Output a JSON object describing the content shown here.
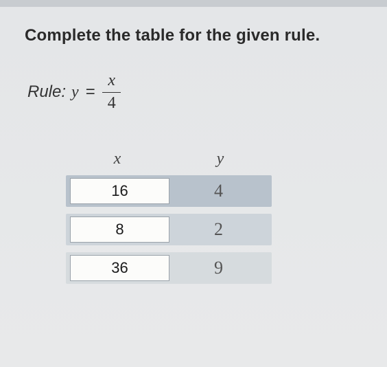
{
  "heading": "Complete the table for the given rule.",
  "rule": {
    "label": "Rule:",
    "lhs_var": "y",
    "equals": "=",
    "numerator": "x",
    "denominator": "4"
  },
  "table": {
    "header_x": "x",
    "header_y": "y",
    "rows": [
      {
        "x": "16",
        "y": "4",
        "shade": "shade-dark"
      },
      {
        "x": "8",
        "y": "2",
        "shade": "shade-mid"
      },
      {
        "x": "36",
        "y": "9",
        "shade": "shade-light"
      }
    ]
  },
  "colors": {
    "background": "#e8e9ea",
    "text": "#2a2a2a",
    "row_shade_dark": "#b8c2cc",
    "row_shade_mid": "#cdd4da",
    "row_shade_light": "#d6dbde",
    "input_bg": "#fcfcfa",
    "input_border": "#9aa2aa"
  }
}
